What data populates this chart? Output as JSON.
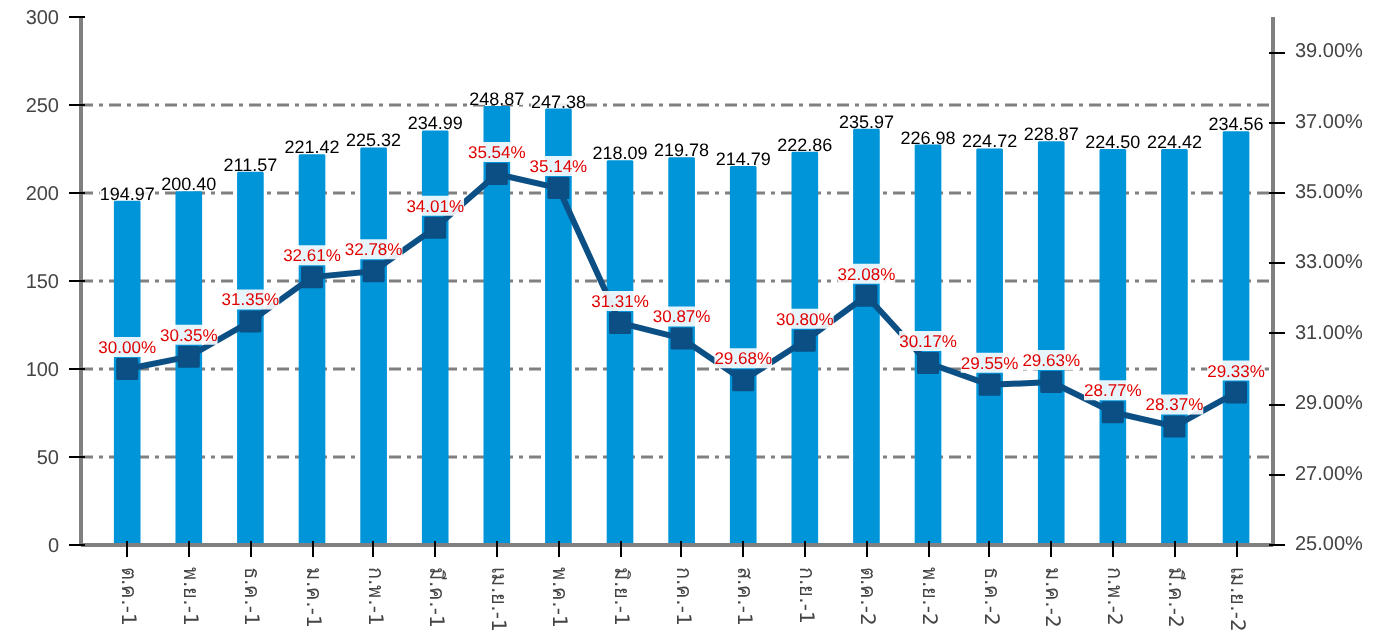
{
  "chart_data": {
    "type": "bar",
    "categories": [
      "ต.ค.-1",
      "พ.ย.-1",
      "ธ.ค.-1",
      "ม.ค.-1",
      "ก.พ.-1",
      "มี.ค.-1",
      "เม.ย.-1",
      "พ.ค.-1",
      "มิ.ย.-1",
      "ก.ค.-1",
      "ส.ค.-1",
      "ก.ย.-1",
      "ต.ค.-2",
      "พ.ย.-2",
      "ธ.ค.-2",
      "ม.ค.-2",
      "ก.พ.-2",
      "มี.ค.-2",
      "เม.ย.-2"
    ],
    "series": [
      {
        "color": "#0095d9",
        "values": [
          194.97,
          200.4,
          211.57,
          221.42,
          225.32,
          234.99,
          248.87,
          247.38,
          218.09,
          219.78,
          214.79,
          222.86,
          235.97,
          226.98,
          224.72,
          228.87,
          224.5,
          224.42,
          234.56
        ],
        "value_labels": [
          "194.97",
          "200.40",
          "211.57",
          "221.42",
          "225.32",
          "234.99",
          "248.87",
          "247.38",
          "218.09",
          "219.78",
          "214.79",
          "222.86",
          "235.97",
          "226.98",
          "224.72",
          "228.87",
          "224.50",
          "224.42",
          "234.56"
        ]
      },
      {
        "type": "line",
        "axis": "y2",
        "color": "#0b4f84",
        "marker": "square",
        "values": [
          30.0,
          30.35,
          31.35,
          32.61,
          32.78,
          34.01,
          35.54,
          35.14,
          31.31,
          30.87,
          29.68,
          30.8,
          32.08,
          30.17,
          29.55,
          29.63,
          28.77,
          28.37,
          29.33
        ],
        "value_labels": [
          "30.00%",
          "30.35%",
          "31.35%",
          "32.61%",
          "32.78%",
          "34.01%",
          "35.54%",
          "35.14%",
          "31.31%",
          "30.87%",
          "29.68%",
          "30.80%",
          "32.08%",
          "30.17%",
          "29.55%",
          "29.63%",
          "28.77%",
          "28.37%",
          "29.33%"
        ]
      }
    ],
    "ylim": [
      0,
      300
    ],
    "yticks": [
      0,
      50,
      100,
      150,
      200,
      250,
      300
    ],
    "y2lim": [
      25,
      40
    ],
    "y2ticks": [
      {
        "value": 25,
        "label": "25.00%"
      },
      {
        "value": 27,
        "label": "27.00%"
      },
      {
        "value": 29,
        "label": "29.00%"
      },
      {
        "value": 31,
        "label": "31.00%"
      },
      {
        "value": 33,
        "label": "33.00%"
      },
      {
        "value": 35,
        "label": "35.00%"
      },
      {
        "value": 37,
        "label": "37.00%"
      },
      {
        "value": 39,
        "label": "39.00%"
      }
    ],
    "grid": "y"
  }
}
